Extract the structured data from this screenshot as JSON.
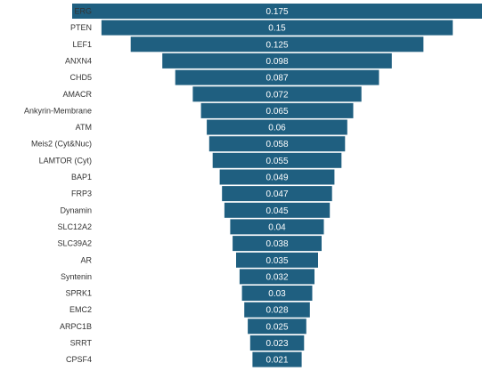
{
  "chart_data": {
    "type": "bar",
    "orientation": "horizontal",
    "layout": "centered-funnel",
    "title": "",
    "xlabel": "",
    "ylabel": "",
    "grid": false,
    "legend": "none",
    "bar_color": "#1f5f80",
    "value_label_color": "#ffffff",
    "categories": [
      "ERG",
      "PTEN",
      "LEF1",
      "ANXN4",
      "CHD5",
      "AMACR",
      "Ankyrin-Membrane",
      "ATM",
      "Meis2 (Cyt&Nuc)",
      "LAMTOR (Cyt)",
      "BAP1",
      "FRP3",
      "Dynamin",
      "SLC12A2",
      "SLC39A2",
      "AR",
      "Syntenin",
      "SPRK1",
      "EMC2",
      "ARPC1B",
      "SRRT",
      "CPSF4"
    ],
    "values": [
      0.175,
      0.15,
      0.125,
      0.098,
      0.087,
      0.072,
      0.065,
      0.06,
      0.058,
      0.055,
      0.049,
      0.047,
      0.045,
      0.04,
      0.038,
      0.035,
      0.032,
      0.03,
      0.028,
      0.025,
      0.023,
      0.021
    ],
    "value_labels": [
      "0.175",
      "0.15",
      "0.125",
      "0.098",
      "0.087",
      "0.072",
      "0.065",
      "0.06",
      "0.058",
      "0.055",
      "0.049",
      "0.047",
      "0.045",
      "0.04",
      "0.038",
      "0.035",
      "0.032",
      "0.03",
      "0.028",
      "0.025",
      "0.023",
      "0.021"
    ]
  }
}
